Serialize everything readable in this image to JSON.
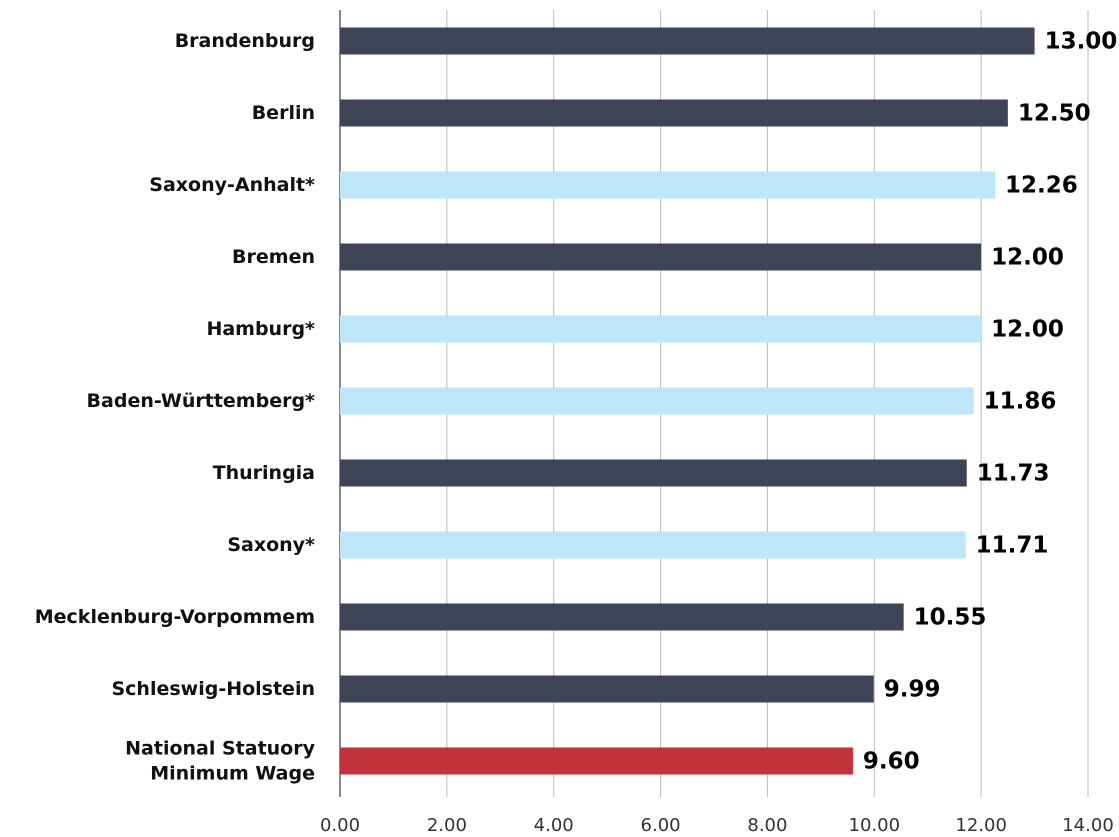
{
  "chart_data": {
    "type": "hbar",
    "categories": [
      "Brandenburg",
      "Berlin",
      "Saxony-Anhalt*",
      "Bremen",
      "Hamburg*",
      "Baden-Württemberg*",
      "Thuringia",
      "Saxony*",
      "Mecklenburg-Vorpommem",
      "Schleswig-Holstein",
      "National Statuory\nMinimum Wage"
    ],
    "values": [
      13,
      12.5,
      12.26,
      12,
      12,
      11.86,
      11.73,
      11.71,
      10.55,
      9.99,
      9.6
    ],
    "value_labels": [
      "13.00",
      "12.50",
      "12.26",
      "12.00",
      "12.00",
      "11.86",
      "11.73",
      "11.71",
      "10.55",
      "9.99",
      "9.60"
    ],
    "colors": [
      "#3d4455",
      "#3d4455",
      "#bde6f8",
      "#3d4455",
      "#bde6f8",
      "#bde6f8",
      "#3d4455",
      "#bde6f8",
      "#3d4455",
      "#3d4455",
      "#c2323a"
    ],
    "xlim": [
      0,
      14
    ],
    "xticks": [
      {
        "value": 0,
        "label": "0.00"
      },
      {
        "value": 2,
        "label": "2.00"
      },
      {
        "value": 4,
        "label": "4.00"
      },
      {
        "value": 6,
        "label": "6.00"
      },
      {
        "value": 8,
        "label": "8.00"
      },
      {
        "value": 10,
        "label": "10.00"
      },
      {
        "value": 12,
        "label": "12.00"
      },
      {
        "value": 14,
        "label": "14.00"
      }
    ],
    "grid": true
  }
}
